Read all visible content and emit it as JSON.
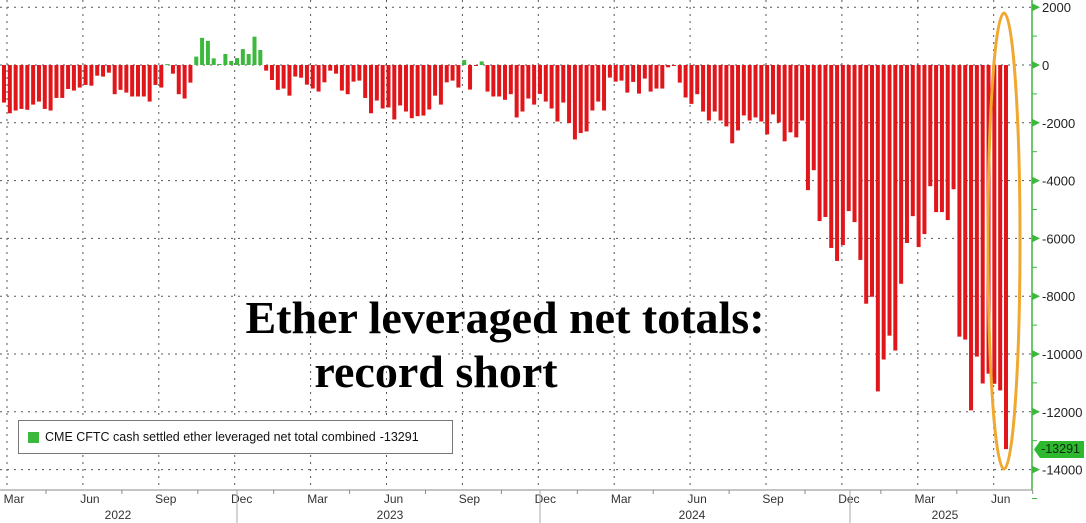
{
  "chart_data": {
    "type": "bar",
    "title": "Ether leveraged net totals:",
    "subtitle": "record short",
    "frequency": "weekly",
    "x_start": "Mar 2022",
    "x_end": "Jul 2025",
    "month_labels": [
      "Mar",
      "Jun",
      "Sep",
      "Dec",
      "Mar",
      "Jun",
      "Sep",
      "Dec",
      "Mar",
      "Jun",
      "Sep",
      "Dec",
      "Mar",
      "Jun"
    ],
    "year_labels": [
      "2022",
      "2023",
      "2024",
      "2025"
    ],
    "y_ticks": [
      2000,
      0,
      -2000,
      -4000,
      -6000,
      -8000,
      -10000,
      -12000,
      -14000
    ],
    "ylim": [
      -14700,
      2100
    ],
    "grid": true,
    "legend_placement": "bottom-left",
    "colors": {
      "positive": "#3cb83c",
      "negative": "#e0161b",
      "highlight": "#f0a830",
      "axis": "#3cb83c"
    },
    "series": [
      {
        "name": "CME CFTC cash settled ether leveraged net total combined",
        "last_value": "-13291",
        "values": [
          -1300,
          -1670,
          -1575,
          -1520,
          -1550,
          -1370,
          -1265,
          -1520,
          -1575,
          -1140,
          -1140,
          -830,
          -885,
          -780,
          -690,
          -715,
          -370,
          -400,
          -265,
          -1010,
          -860,
          -955,
          -1090,
          -1090,
          -1090,
          -1265,
          -690,
          -780,
          30,
          -300,
          -1010,
          -1160,
          -610,
          290,
          940,
          830,
          230,
          35,
          380,
          140,
          240,
          550,
          380,
          980,
          520,
          -195,
          -520,
          -860,
          -815,
          -1060,
          -400,
          -440,
          -680,
          -815,
          -920,
          -600,
          -195,
          -300,
          -885,
          -1010,
          -575,
          -540,
          -1140,
          -1670,
          -1230,
          -1505,
          -1470,
          -1885,
          -1400,
          -1610,
          -1840,
          -1770,
          -1750,
          -1540,
          -1060,
          -1370,
          -600,
          -540,
          -780,
          170,
          -850,
          -20,
          125,
          -920,
          -1090,
          -1090,
          -1205,
          -1010,
          -1815,
          -1610,
          -1160,
          -1370,
          -1000,
          -1265,
          -1505,
          -1955,
          -1300,
          -2010,
          -2575,
          -2355,
          -2300,
          -1575,
          -1265,
          -1575,
          -435,
          -575,
          -540,
          -955,
          -585,
          -990,
          -470,
          -920,
          -815,
          -815,
          -80,
          -20,
          -610,
          -1125,
          -1345,
          -1010,
          -1610,
          -1920,
          -1610,
          -1920,
          -2125,
          -2710,
          -2265,
          -1745,
          -1920,
          -1815,
          -1955,
          -2400,
          -1710,
          -1990,
          -2640,
          -2330,
          -2505,
          -1920,
          -4330,
          -3640,
          -5400,
          -5260,
          -6330,
          -6780,
          -6230,
          -5055,
          -5435,
          -6745,
          -8260,
          -8020,
          -11295,
          -10190,
          -9365,
          -9880,
          -7570,
          -6160,
          -5230,
          -6300,
          -5850,
          -4195,
          -5090,
          -5090,
          -5365,
          -4300,
          -9400,
          -9500,
          -11950,
          -10090,
          -11020,
          -10680,
          -11030,
          -11260,
          -13291
        ]
      }
    ]
  }
}
